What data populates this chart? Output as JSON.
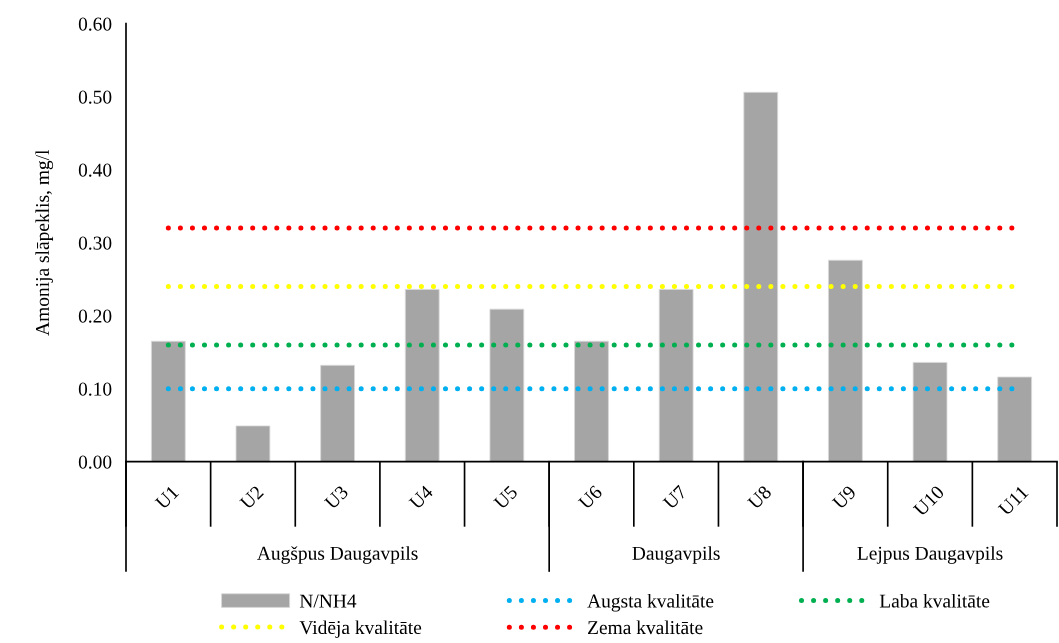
{
  "chart_data": {
    "type": "bar",
    "ylabel": "Amonija slāpeklis, mg/l",
    "categories": [
      "U1",
      "U2",
      "U3",
      "U4",
      "U5",
      "U6",
      "U7",
      "U8",
      "U9",
      "U10",
      "U11"
    ],
    "series": [
      {
        "name": "N/NH4",
        "color": "#a5a5a5",
        "values": [
          0.165,
          0.049,
          0.132,
          0.236,
          0.209,
          0.165,
          0.236,
          0.506,
          0.276,
          0.136,
          0.116
        ]
      }
    ],
    "ylim": [
      0,
      0.6
    ],
    "yticks": [
      {
        "value": 0,
        "label": "0.00"
      },
      {
        "value": 0.1,
        "label": "0.10"
      },
      {
        "value": 0.2,
        "label": "0.20"
      },
      {
        "value": 0.3,
        "label": "0.30"
      },
      {
        "value": 0.4,
        "label": "0.40"
      },
      {
        "value": 0.5,
        "label": "0.50"
      },
      {
        "value": 0.6,
        "label": "0.60"
      }
    ],
    "ref_lines": [
      {
        "axis": "y",
        "value": 0.1,
        "label": "Augsta kvalitāte",
        "color": "#00b0f0",
        "line_style": "dotted"
      },
      {
        "axis": "y",
        "value": 0.16,
        "label": "Laba kvalitāte",
        "color": "#00b050",
        "line_style": "dotted"
      },
      {
        "axis": "y",
        "value": 0.24,
        "label": "Vidēja kvalitāte",
        "color": "#ffff00",
        "line_style": "dotted"
      },
      {
        "axis": "y",
        "value": 0.32,
        "label": "Zema kvalitāte",
        "color": "#ff0000",
        "line_style": "dotted"
      }
    ],
    "annotations": [
      "Augšpus Daugavpils",
      "Daugavpils",
      "Lejpus Daugavpils"
    ],
    "grid": false,
    "legend": "bottom"
  }
}
